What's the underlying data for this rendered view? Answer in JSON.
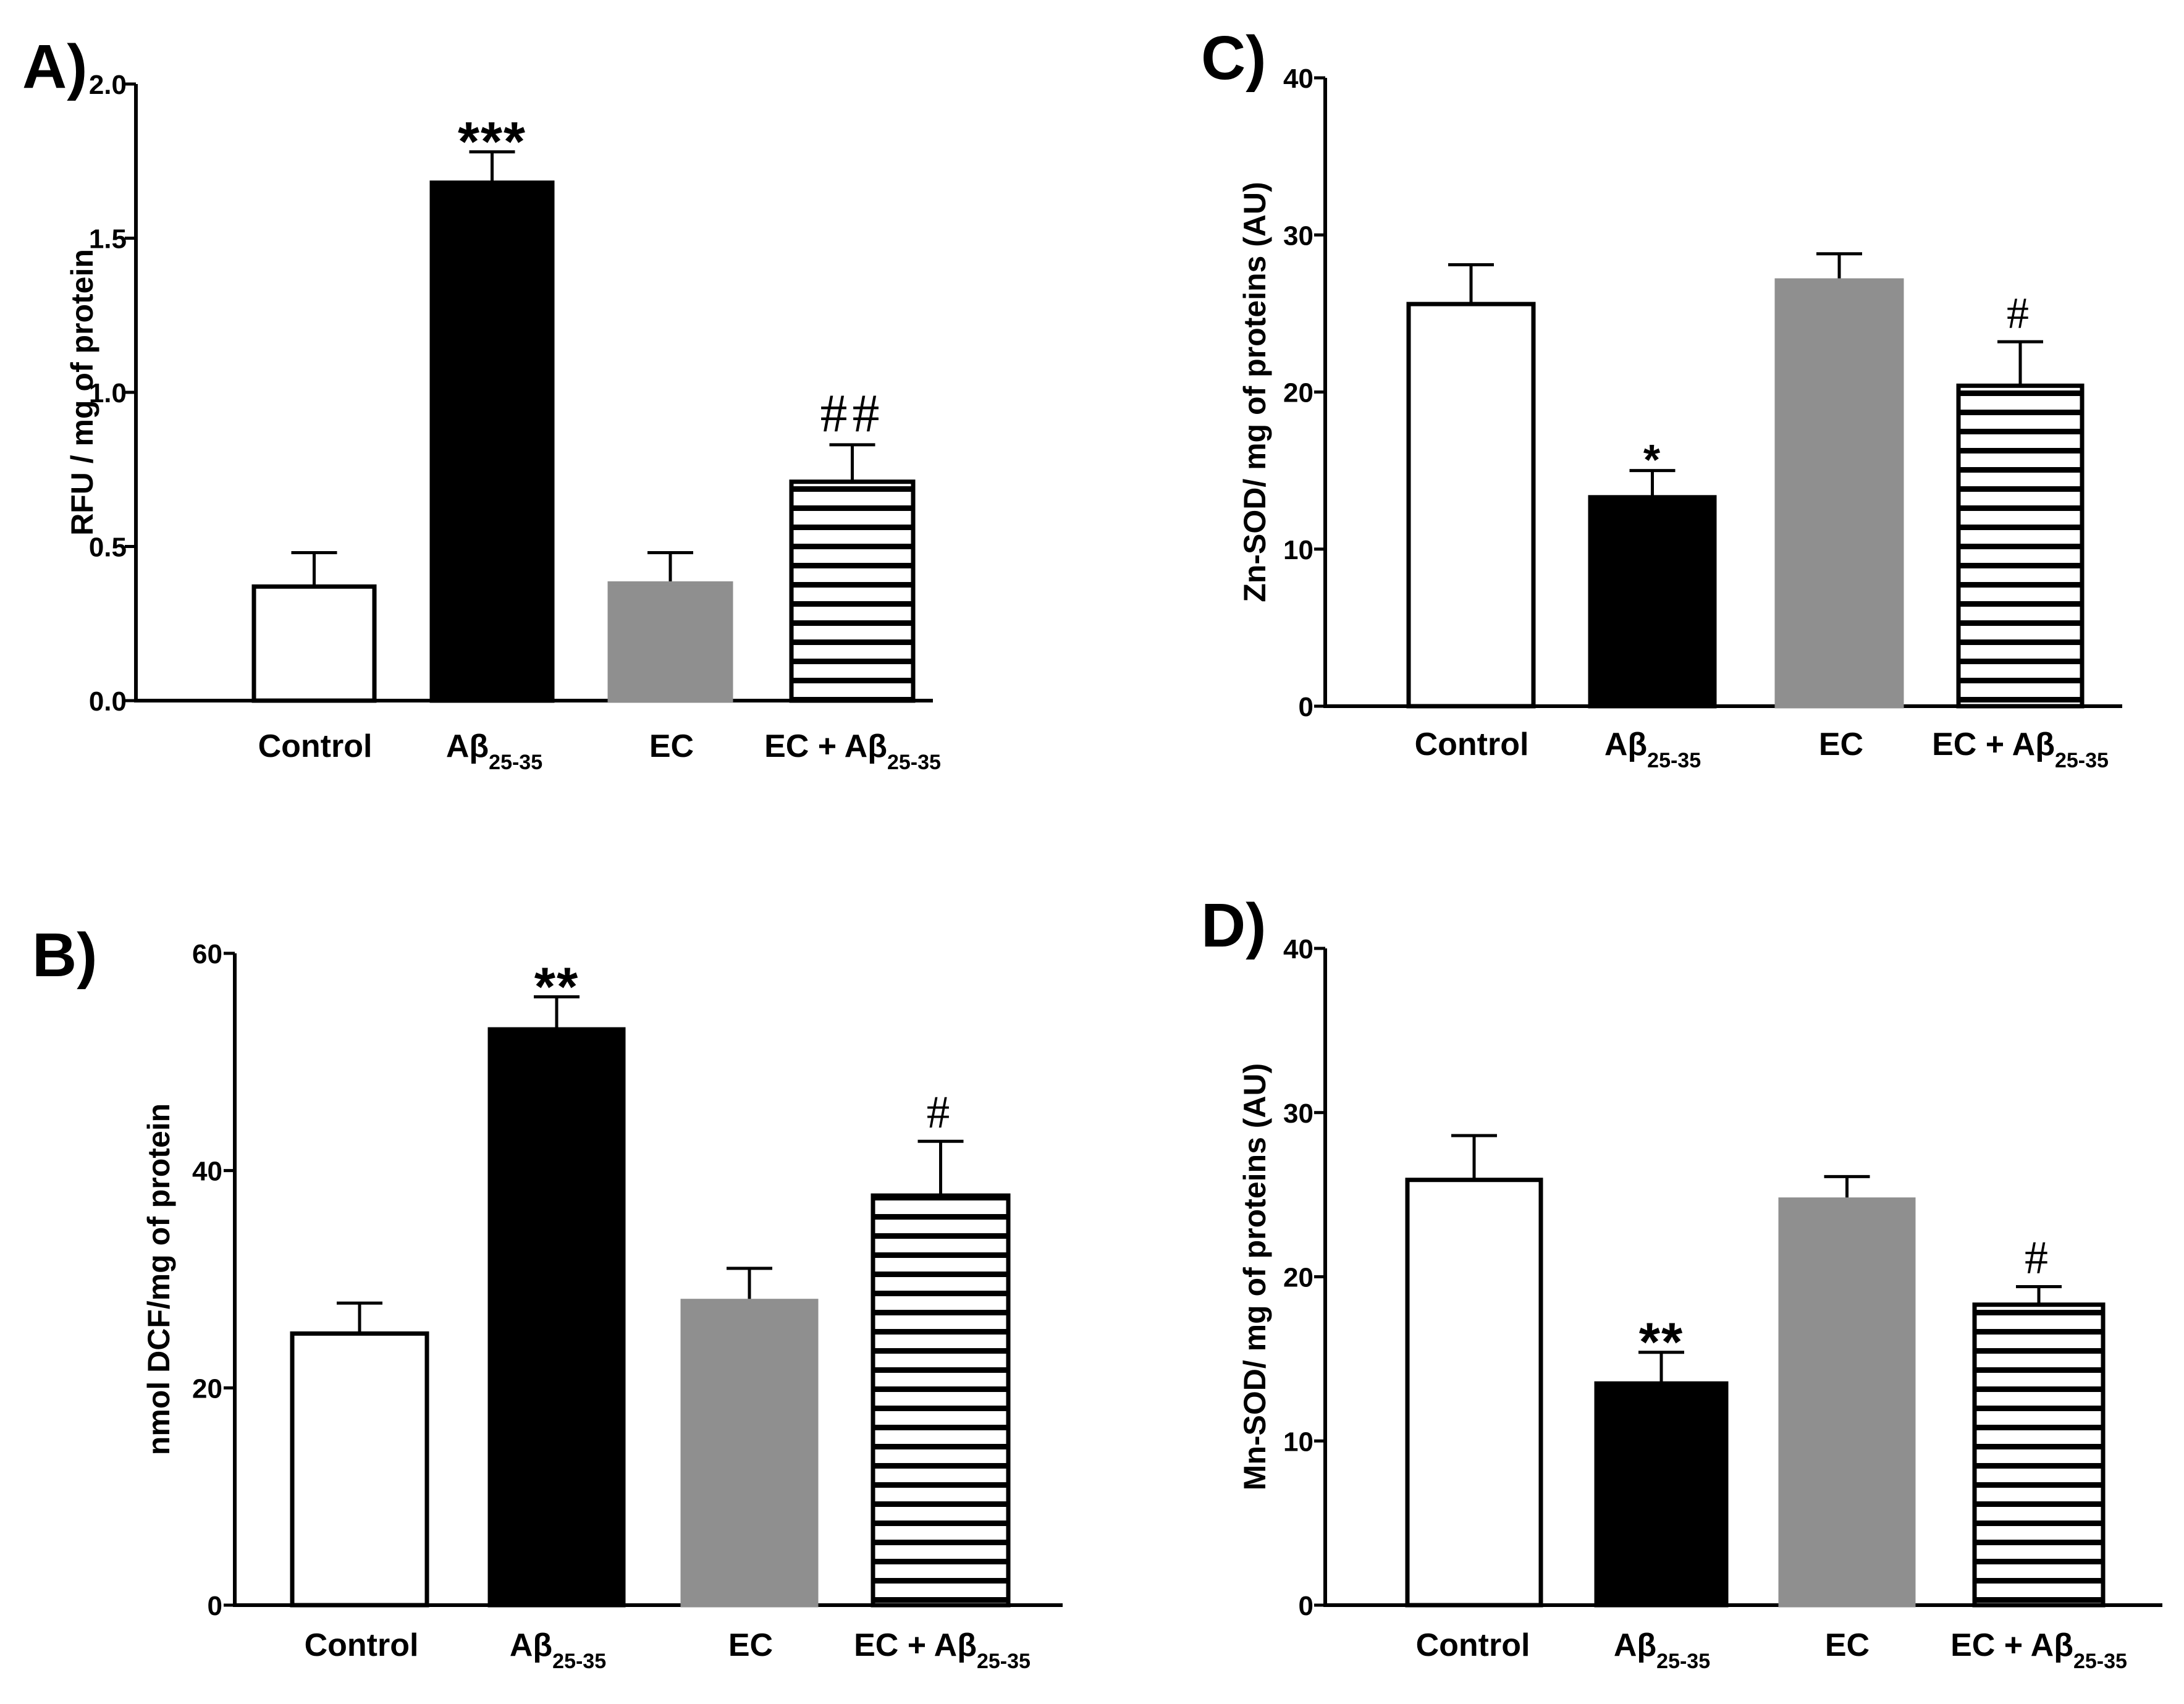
{
  "chart_data": [
    {
      "panel": "A)",
      "type": "bar",
      "ylabel": "RFU / mg of protein",
      "ylim": [
        0,
        2.0
      ],
      "yticks": [
        "0.0",
        "0.5",
        "1.0",
        "1.5",
        "2.0"
      ],
      "categories": [
        {
          "main": "Control",
          "sub": ""
        },
        {
          "main": "Aβ",
          "sub": "25-35"
        },
        {
          "main": "EC",
          "sub": ""
        },
        {
          "main": "EC + Aβ",
          "sub": "25-35"
        }
      ],
      "values": [
        0.37,
        1.68,
        0.38,
        0.71
      ],
      "errors": [
        0.11,
        0.1,
        0.1,
        0.12
      ],
      "significance": [
        "",
        "***",
        "",
        "##"
      ],
      "fills": [
        "#ffffff",
        "#000000",
        "#8f8f8f",
        "stripes"
      ]
    },
    {
      "panel": "B)",
      "type": "bar",
      "ylabel": "nmol DCF/mg of protein",
      "ylim": [
        0,
        60
      ],
      "yticks": [
        "0",
        "20",
        "40",
        "60"
      ],
      "categories": [
        {
          "main": "Control",
          "sub": ""
        },
        {
          "main": "Aβ",
          "sub": "25-35"
        },
        {
          "main": "EC",
          "sub": ""
        },
        {
          "main": "EC + Aβ",
          "sub": "25-35"
        }
      ],
      "values": [
        25,
        53,
        28,
        37.7
      ],
      "errors": [
        2.8,
        3.0,
        3.0,
        5.0
      ],
      "significance": [
        "",
        "**",
        "",
        "#"
      ],
      "fills": [
        "#ffffff",
        "#000000",
        "#8f8f8f",
        "stripes"
      ]
    },
    {
      "panel": "C)",
      "type": "bar",
      "ylabel": "Zn-SOD/ mg of proteins (AU)",
      "ylim": [
        0,
        40
      ],
      "yticks": [
        "0",
        "10",
        "20",
        "30",
        "40"
      ],
      "categories": [
        {
          "main": "Control",
          "sub": ""
        },
        {
          "main": "Aβ",
          "sub": "25-35"
        },
        {
          "main": "EC",
          "sub": ""
        },
        {
          "main": "EC + Aβ",
          "sub": "25-35"
        }
      ],
      "values": [
        25.6,
        13.3,
        27.1,
        20.4
      ],
      "errors": [
        2.5,
        1.7,
        1.7,
        2.8
      ],
      "significance": [
        "",
        "*",
        "",
        "#"
      ],
      "fills": [
        "#ffffff",
        "#000000",
        "#8f8f8f",
        "stripes"
      ]
    },
    {
      "panel": "D)",
      "type": "bar",
      "ylabel": "Mn-SOD/ mg of proteins (AU)",
      "ylim": [
        0,
        40
      ],
      "yticks": [
        "0",
        "10",
        "20",
        "30",
        "40"
      ],
      "categories": [
        {
          "main": "Control",
          "sub": ""
        },
        {
          "main": "Aβ",
          "sub": "25-35"
        },
        {
          "main": "EC",
          "sub": ""
        },
        {
          "main": "EC + Aβ",
          "sub": "25-35"
        }
      ],
      "values": [
        25.9,
        13.5,
        24.7,
        18.3
      ],
      "errors": [
        2.7,
        1.9,
        1.4,
        1.1
      ],
      "significance": [
        "",
        "**",
        "",
        "#"
      ],
      "fills": [
        "#ffffff",
        "#000000",
        "#8f8f8f",
        "stripes"
      ]
    }
  ]
}
